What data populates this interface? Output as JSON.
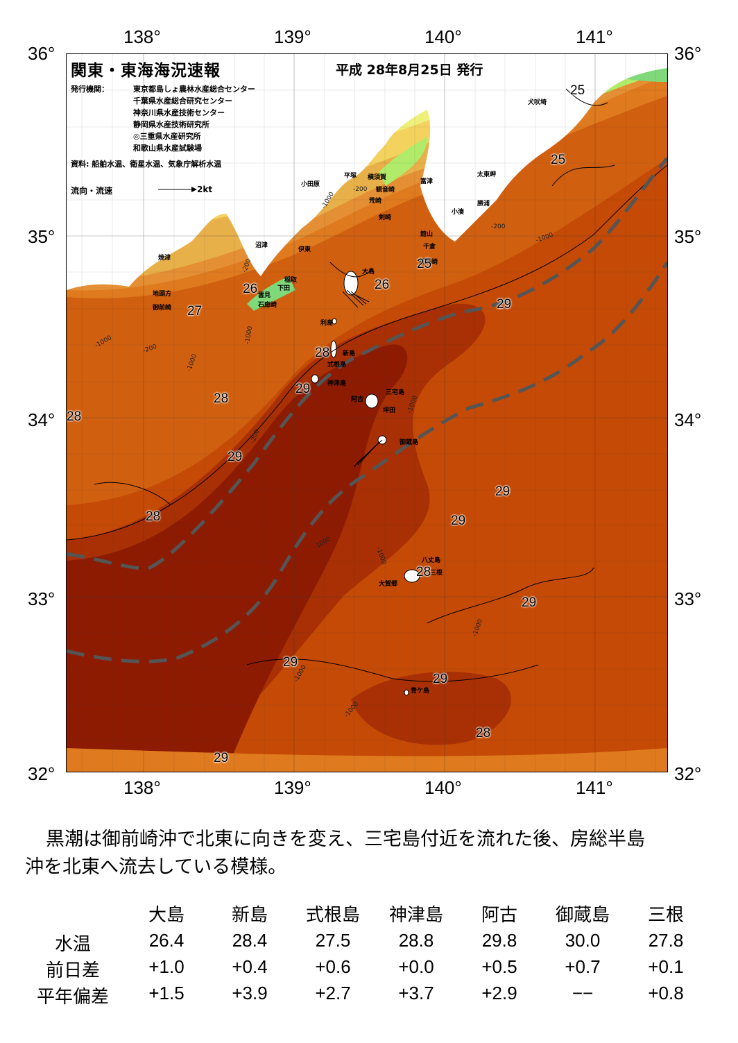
{
  "map": {
    "title": "関東・東海海況速報",
    "date": "平成 28年8月25日 発行",
    "issuer_label": "発行機関：",
    "issuers": [
      "東京都島しょ農林水産総合センター",
      "千葉県水産総合研究センター",
      "神奈川県水産技術センター",
      "静岡県水産技術研究所",
      "◎三重県水産研究所",
      "和歌山県水産試験場"
    ],
    "sources": "資料: 船舶水温、衛星水温、気象庁解析水温",
    "flow_legend": "流向・流速",
    "flow_speed": "2kt",
    "lon_labels": [
      "138°",
      "139°",
      "140°",
      "141°"
    ],
    "lat_labels": [
      "36°",
      "35°",
      "34°",
      "33°",
      "32°"
    ],
    "place_names": [
      "犬吠埼",
      "太東岬",
      "勝浦",
      "小湊",
      "富津",
      "館山",
      "千倉",
      "野島崎",
      "横須賀",
      "観音崎",
      "剣崎",
      "三崎",
      "平塚",
      "小田原",
      "沼津",
      "伊東",
      "稲取",
      "下田",
      "雲見",
      "石廊崎",
      "焼津",
      "地頭方",
      "御前崎",
      "大島",
      "利島",
      "新島",
      "式根島",
      "神津島",
      "三宅島",
      "阿古",
      "坪田",
      "御蔵島",
      "八丈島",
      "三根",
      "大賀郷",
      "青ケ島",
      "荒崎"
    ],
    "temperature_labels": [
      "25",
      "25",
      "25",
      "26",
      "26",
      "27",
      "28",
      "28",
      "28",
      "28",
      "28",
      "28",
      "29",
      "29",
      "29",
      "29",
      "29",
      "29",
      "29",
      "29",
      "29"
    ],
    "depth_labels": [
      "-1000",
      "-200"
    ],
    "colors": {
      "land": "#ffffff",
      "t_lt_25": "#7fd97a",
      "t_25": "#b0eb6a",
      "t_26": "#eef07a",
      "t_26_5": "#f4d25e",
      "t_27": "#e8b048",
      "t_27_5": "#e48f34",
      "t_28": "#df7a1e",
      "t_28_5": "#d05f10",
      "t_29": "#c44a06",
      "t_29_5": "#a83004",
      "t_30": "#8c1b02",
      "kuroshio_axis": "#555555"
    }
  },
  "summary": [
    "黒潮は御前崎沖で北東に向きを変え、三宅島付近を流れた後、房総半島",
    "沖を北東へ流去している模様。"
  ],
  "table": {
    "stations": [
      "大島",
      "新島",
      "式根島",
      "神津島",
      "阿古",
      "御蔵島",
      "三根"
    ],
    "rows": [
      {
        "label": "水温",
        "values": [
          "26.4",
          "28.4",
          "27.5",
          "28.8",
          "29.8",
          "30.0",
          "27.8"
        ]
      },
      {
        "label": "前日差",
        "values": [
          "+1.0",
          "+0.4",
          "+0.6",
          "+0.0",
          "+0.5",
          "+0.7",
          "+0.1"
        ]
      },
      {
        "label": "平年偏差",
        "values": [
          "+1.5",
          "+3.9",
          "+2.7",
          "+3.7",
          "+2.9",
          "−−",
          "+0.8"
        ]
      }
    ]
  }
}
